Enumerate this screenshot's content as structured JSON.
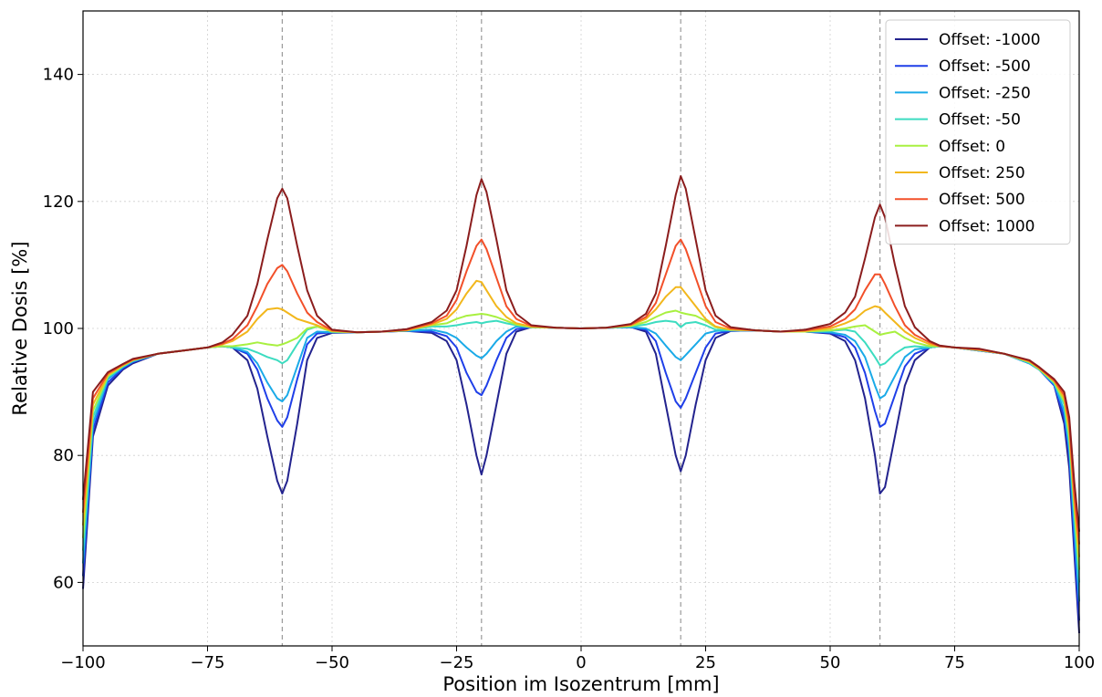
{
  "chart_data": {
    "type": "line",
    "title": "",
    "xlabel": "Position im Isozentrum [mm]",
    "ylabel": "Relative Dosis [%]",
    "xlim": [
      -100,
      100
    ],
    "ylim": [
      50,
      150
    ],
    "x_ticks": [
      -100,
      -75,
      -50,
      -25,
      0,
      25,
      50,
      75,
      100
    ],
    "x_tick_labels": [
      "−100",
      "−75",
      "−50",
      "−25",
      "0",
      "25",
      "50",
      "75",
      "100"
    ],
    "y_ticks": [
      60,
      80,
      100,
      120,
      140
    ],
    "y_tick_labels": [
      "60",
      "80",
      "100",
      "120",
      "140"
    ],
    "grid": true,
    "legend_position": "top-right",
    "reference_lines_x": [
      -60,
      -20,
      20,
      60
    ],
    "x": [
      -100,
      -98,
      -95,
      -92,
      -90,
      -85,
      -80,
      -75,
      -72,
      -70,
      -67,
      -65,
      -63,
      -61,
      -60,
      -59,
      -57,
      -55,
      -53,
      -50,
      -45,
      -40,
      -35,
      -30,
      -27,
      -25,
      -23,
      -21,
      -20,
      -19,
      -17,
      -15,
      -13,
      -10,
      -5,
      0,
      5,
      10,
      13,
      15,
      17,
      19,
      20,
      21,
      23,
      25,
      27,
      30,
      35,
      40,
      45,
      50,
      53,
      55,
      57,
      59,
      60,
      61,
      63,
      65,
      67,
      70,
      72,
      75,
      80,
      85,
      90,
      92,
      95,
      97,
      98,
      99,
      100
    ],
    "series": [
      {
        "name": "Offset: -1000",
        "color": "#23238e",
        "values": [
          59,
          83,
          91,
          93.5,
          94.5,
          96,
          96.5,
          97,
          97.2,
          97,
          95,
          90.5,
          83,
          76,
          74,
          76,
          85,
          95,
          98.5,
          99.3,
          99.4,
          99.5,
          99.6,
          99.3,
          98,
          95,
          88,
          80,
          77,
          80,
          88,
          96,
          99.5,
          100.2,
          100.1,
          100,
          100.1,
          100.2,
          99.5,
          96,
          88,
          80,
          77.5,
          80,
          88,
          95,
          98.5,
          99.6,
          99.7,
          99.5,
          99.5,
          99.2,
          98,
          95,
          89,
          80,
          74,
          75,
          83,
          91,
          95,
          97,
          97.2,
          97,
          96.5,
          96,
          94.5,
          93.5,
          91,
          85,
          78,
          65,
          52
        ]
      },
      {
        "name": "Offset: -500",
        "color": "#1f3fe8",
        "values": [
          61,
          84,
          91.5,
          93.7,
          94.7,
          96,
          96.5,
          97,
          97.2,
          97,
          96,
          93.5,
          89,
          85.5,
          84.5,
          86,
          92,
          97.5,
          99.2,
          99.4,
          99.4,
          99.5,
          99.6,
          99.5,
          98.8,
          97,
          93,
          90,
          89.5,
          91,
          95,
          98.5,
          99.9,
          100.2,
          100.1,
          100,
          100.1,
          100.2,
          99.8,
          98,
          93,
          88.5,
          87.5,
          89,
          93,
          97,
          99.2,
          99.6,
          99.7,
          99.5,
          99.5,
          99.3,
          98.6,
          97,
          93,
          87,
          84.5,
          85,
          89.5,
          94,
          96,
          97,
          97.2,
          97,
          96.5,
          96,
          94.5,
          93.5,
          91,
          86,
          80,
          67,
          54
        ]
      },
      {
        "name": "Offset: -250",
        "color": "#1aaae8",
        "values": [
          63,
          85,
          92,
          93.9,
          94.8,
          96,
          96.5,
          97,
          97.2,
          97,
          96.3,
          94.5,
          91.5,
          89,
          88.5,
          89.5,
          94,
          98.5,
          99.5,
          99.4,
          99.4,
          99.5,
          99.6,
          99.8,
          99.3,
          98.5,
          97,
          95.7,
          95.3,
          96,
          98,
          99.5,
          100.3,
          100.2,
          100.1,
          100,
          100.1,
          100.2,
          100,
          99.2,
          97.3,
          95.5,
          95,
          95.8,
          97.5,
          99.2,
          99.6,
          99.7,
          99.7,
          99.5,
          99.5,
          99.4,
          99,
          98,
          95.5,
          91,
          89,
          89.5,
          92.5,
          95.5,
          96.7,
          97,
          97.2,
          97,
          96.5,
          96,
          94.5,
          93.5,
          91.2,
          87,
          81,
          69,
          57
        ]
      },
      {
        "name": "Offset: -50",
        "color": "#3cdcc0",
        "values": [
          65,
          86,
          92.3,
          94,
          94.9,
          96,
          96.5,
          97,
          97.2,
          97,
          96.8,
          96.2,
          95.5,
          95,
          94.5,
          95,
          97.5,
          99.8,
          100.3,
          99.5,
          99.4,
          99.5,
          99.7,
          100.3,
          100.3,
          100.5,
          100.8,
          101,
          100.8,
          101,
          101.2,
          100.8,
          100.5,
          100.2,
          100.1,
          100,
          100.1,
          100.3,
          100.6,
          101,
          101.2,
          101,
          100.2,
          100.8,
          101,
          100.5,
          99.8,
          99.7,
          99.7,
          99.5,
          99.5,
          99.6,
          99.8,
          99.5,
          97.8,
          95.5,
          94.2,
          94.5,
          96,
          97,
          97.2,
          97,
          97.2,
          97,
          96.6,
          96,
          94.6,
          93.5,
          91.4,
          88,
          82,
          71,
          60
        ]
      },
      {
        "name": "Offset: 0",
        "color": "#a8f040",
        "values": [
          67,
          87,
          92.5,
          94.1,
          95,
          96,
          96.5,
          97,
          97.2,
          97.2,
          97.5,
          97.8,
          97.5,
          97.3,
          97.5,
          97.8,
          98.5,
          100,
          100.3,
          99.5,
          99.4,
          99.5,
          99.7,
          100.5,
          100.8,
          101.5,
          102,
          102.2,
          102.3,
          102.2,
          101.8,
          101.2,
          100.6,
          100.2,
          100.1,
          100,
          100.1,
          100.4,
          101,
          101.8,
          102.5,
          102.8,
          102.5,
          102.3,
          102,
          101.2,
          100.2,
          99.8,
          99.7,
          99.5,
          99.5,
          99.7,
          100,
          100.3,
          100.5,
          99.5,
          99,
          99.2,
          99.5,
          98.5,
          97.8,
          97.2,
          97.2,
          97,
          96.6,
          96,
          94.7,
          93.6,
          91.5,
          88.5,
          83,
          72,
          62
        ]
      },
      {
        "name": "Offset: 250",
        "color": "#f2b71c",
        "values": [
          69,
          88,
          92.7,
          94.2,
          95,
          96,
          96.5,
          97,
          97.5,
          98,
          99.5,
          101.5,
          103,
          103.2,
          103,
          102.5,
          101.5,
          101,
          100.5,
          99.6,
          99.4,
          99.5,
          99.7,
          100.6,
          101.5,
          103,
          105.5,
          107.5,
          107.3,
          106,
          103.5,
          101.8,
          100.8,
          100.3,
          100.1,
          100,
          100.1,
          100.5,
          101.5,
          103,
          105,
          106.5,
          106.5,
          105.5,
          103.5,
          101.5,
          100.3,
          99.8,
          99.7,
          99.5,
          99.6,
          100,
          100.8,
          101.5,
          102.8,
          103.5,
          103.3,
          102.5,
          101,
          99.5,
          98.5,
          97.5,
          97.2,
          97,
          96.6,
          96,
          94.8,
          93.7,
          91.7,
          89,
          84,
          73,
          64
        ]
      },
      {
        "name": "Offset: 500",
        "color": "#f2502a",
        "values": [
          71,
          89,
          92.9,
          94.3,
          95.1,
          96,
          96.5,
          97,
          97.6,
          98.3,
          100.5,
          103.5,
          107,
          109.5,
          110,
          109,
          105.5,
          102.5,
          101,
          99.7,
          99.4,
          99.5,
          99.8,
          100.8,
          102,
          104.5,
          109,
          113,
          114,
          112.5,
          108,
          103.5,
          101.5,
          100.4,
          100.1,
          100,
          100.1,
          100.6,
          101.8,
          104,
          108.5,
          113,
          114,
          112.5,
          108,
          103.5,
          101,
          100,
          99.7,
          99.5,
          99.7,
          100.3,
          101.5,
          103,
          106,
          108.5,
          108.5,
          107,
          103.5,
          100.5,
          99,
          97.8,
          97.2,
          97,
          96.7,
          96,
          94.9,
          93.8,
          91.8,
          89.5,
          85,
          74,
          66
        ]
      },
      {
        "name": "Offset: 1000",
        "color": "#8b1d1d",
        "values": [
          73,
          90,
          93.1,
          94.4,
          95.2,
          96,
          96.5,
          97,
          97.8,
          99,
          102,
          107,
          114,
          120.5,
          122,
          120.5,
          113,
          106,
          102,
          99.8,
          99.4,
          99.5,
          99.9,
          101,
          102.8,
          106,
          113,
          121,
          123.5,
          121.5,
          114,
          106,
          102.3,
          100.5,
          100.1,
          100,
          100.1,
          100.7,
          102.3,
          105.5,
          113,
          121,
          124,
          122,
          114,
          106,
          102,
          100.2,
          99.7,
          99.5,
          99.8,
          100.7,
          102.5,
          105,
          111,
          117.5,
          119.5,
          117.5,
          110,
          103.5,
          100.2,
          98,
          97.3,
          97,
          96.8,
          96,
          95,
          93.9,
          92,
          90,
          86,
          76,
          68
        ]
      }
    ]
  }
}
